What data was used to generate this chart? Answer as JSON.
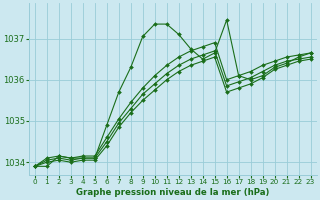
{
  "title": "Graphe pression niveau de la mer (hPa)",
  "bg_color": "#cce8f0",
  "grid_color": "#99ccd8",
  "line_color": "#1a6e1a",
  "marker_color": "#1a6e1a",
  "ylim": [
    1033.7,
    1037.85
  ],
  "xlim": [
    -0.5,
    23.5
  ],
  "yticks": [
    1034,
    1035,
    1036,
    1037
  ],
  "xticks": [
    0,
    1,
    2,
    3,
    4,
    5,
    6,
    7,
    8,
    9,
    10,
    11,
    12,
    13,
    14,
    15,
    16,
    17,
    18,
    19,
    20,
    21,
    22,
    23
  ],
  "series": [
    [
      1033.9,
      1033.9,
      1034.15,
      1034.1,
      1034.1,
      1034.1,
      1034.9,
      1035.7,
      1036.3,
      1037.05,
      1037.35,
      1037.35,
      1037.1,
      1036.75,
      1036.5,
      1036.65,
      1037.45,
      1036.1,
      1036.0,
      1036.1,
      1036.3,
      1036.4,
      1036.55,
      1036.65
    ],
    [
      1033.9,
      1034.1,
      1034.15,
      1034.1,
      1034.15,
      1034.15,
      1034.6,
      1035.05,
      1035.45,
      1035.8,
      1036.1,
      1036.35,
      1036.55,
      1036.7,
      1036.8,
      1036.9,
      1036.0,
      1036.1,
      1036.2,
      1036.35,
      1036.45,
      1036.55,
      1036.6,
      1036.65
    ],
    [
      1033.9,
      1034.05,
      1034.1,
      1034.05,
      1034.1,
      1034.1,
      1034.5,
      1034.95,
      1035.3,
      1035.65,
      1035.9,
      1036.15,
      1036.35,
      1036.5,
      1036.6,
      1036.7,
      1035.85,
      1035.95,
      1036.05,
      1036.2,
      1036.35,
      1036.45,
      1036.5,
      1036.55
    ],
    [
      1033.9,
      1034.0,
      1034.05,
      1034.0,
      1034.05,
      1034.05,
      1034.4,
      1034.85,
      1035.2,
      1035.5,
      1035.75,
      1036.0,
      1036.2,
      1036.35,
      1036.45,
      1036.55,
      1035.7,
      1035.8,
      1035.9,
      1036.05,
      1036.25,
      1036.35,
      1036.45,
      1036.5
    ]
  ]
}
